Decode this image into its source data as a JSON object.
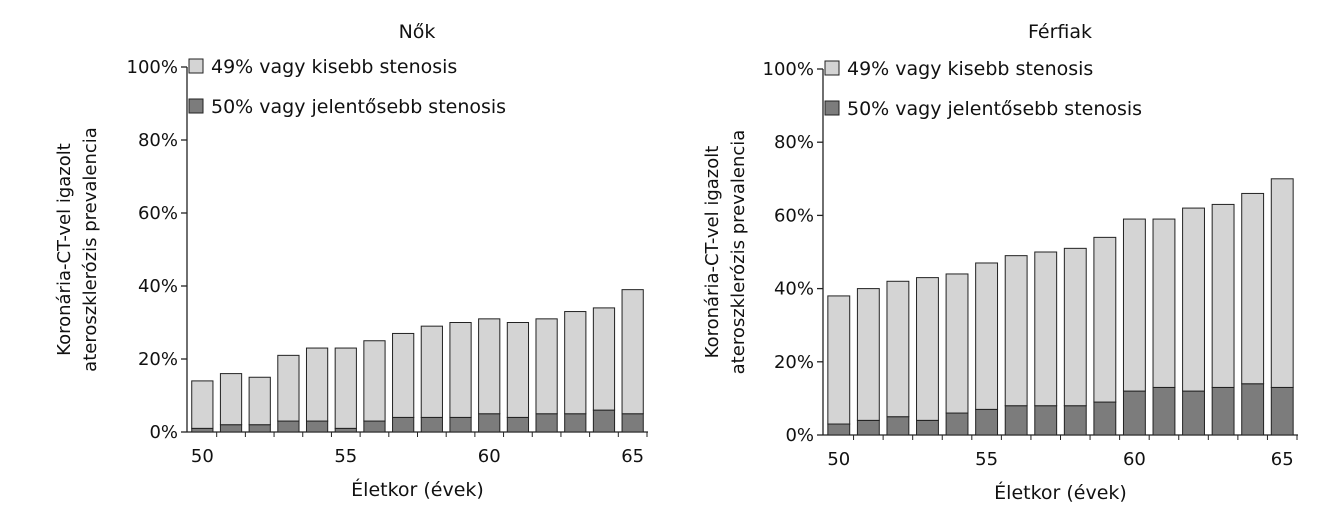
{
  "colors": {
    "minor": "#d4d4d4",
    "major": "#7c7c7c",
    "stroke": "#222222"
  },
  "chart_data": [
    {
      "type": "bar",
      "stacked": true,
      "title": "Nők",
      "xlabel": "Életkor (évek)",
      "ylabel": [
        "Koronária-CT-vel igazolt",
        "ateroszklerózis prevalencia"
      ],
      "ylim": [
        0,
        100
      ],
      "yticks": [
        "0%",
        "20%",
        "40%",
        "60%",
        "80%",
        "100%"
      ],
      "xticks": [
        "50",
        "55",
        "60",
        "65"
      ],
      "x": [
        50,
        51,
        52,
        53,
        54,
        55,
        56,
        57,
        58,
        59,
        60,
        61,
        62,
        63,
        64,
        65
      ],
      "series": [
        {
          "name": "50% vagy jelentősebb stenosis",
          "color": "#7c7c7c",
          "values": [
            1,
            2,
            2,
            3,
            3,
            1,
            3,
            4,
            4,
            4,
            5,
            4,
            5,
            5,
            6,
            5
          ]
        },
        {
          "name": "49% vagy kisebb stenosis",
          "color": "#d4d4d4",
          "values": [
            13,
            14,
            13,
            18,
            20,
            22,
            22,
            23,
            25,
            26,
            26,
            26,
            26,
            28,
            28,
            34
          ]
        }
      ],
      "totals": [
        14,
        16,
        15,
        21,
        23,
        23,
        25,
        27,
        29,
        30,
        31,
        30,
        31,
        33,
        34,
        39
      ],
      "legend": "top-left",
      "grid": false
    },
    {
      "type": "bar",
      "stacked": true,
      "title": "Férfiak",
      "xlabel": "Életkor (évek)",
      "ylabel": [
        "Koronária-CT-vel igazolt",
        "ateroszklerózis prevalencia"
      ],
      "ylim": [
        0,
        100
      ],
      "yticks": [
        "0%",
        "20%",
        "40%",
        "60%",
        "80%",
        "100%"
      ],
      "xticks": [
        "50",
        "55",
        "60",
        "65"
      ],
      "x": [
        50,
        51,
        52,
        53,
        54,
        55,
        56,
        57,
        58,
        59,
        60,
        61,
        62,
        63,
        64,
        65
      ],
      "series": [
        {
          "name": "50% vagy jelentősebb stenosis",
          "color": "#7c7c7c",
          "values": [
            3,
            4,
            5,
            4,
            6,
            7,
            8,
            8,
            8,
            9,
            12,
            13,
            12,
            13,
            14,
            13
          ]
        },
        {
          "name": "49% vagy kisebb stenosis",
          "color": "#d4d4d4",
          "values": [
            35,
            36,
            37,
            39,
            38,
            40,
            41,
            42,
            43,
            45,
            47,
            46,
            50,
            50,
            52,
            57
          ]
        }
      ],
      "totals": [
        38,
        40,
        42,
        43,
        44,
        47,
        49,
        50,
        51,
        54,
        59,
        59,
        62,
        63,
        66,
        70
      ],
      "legend": "top-left",
      "grid": false
    }
  ]
}
